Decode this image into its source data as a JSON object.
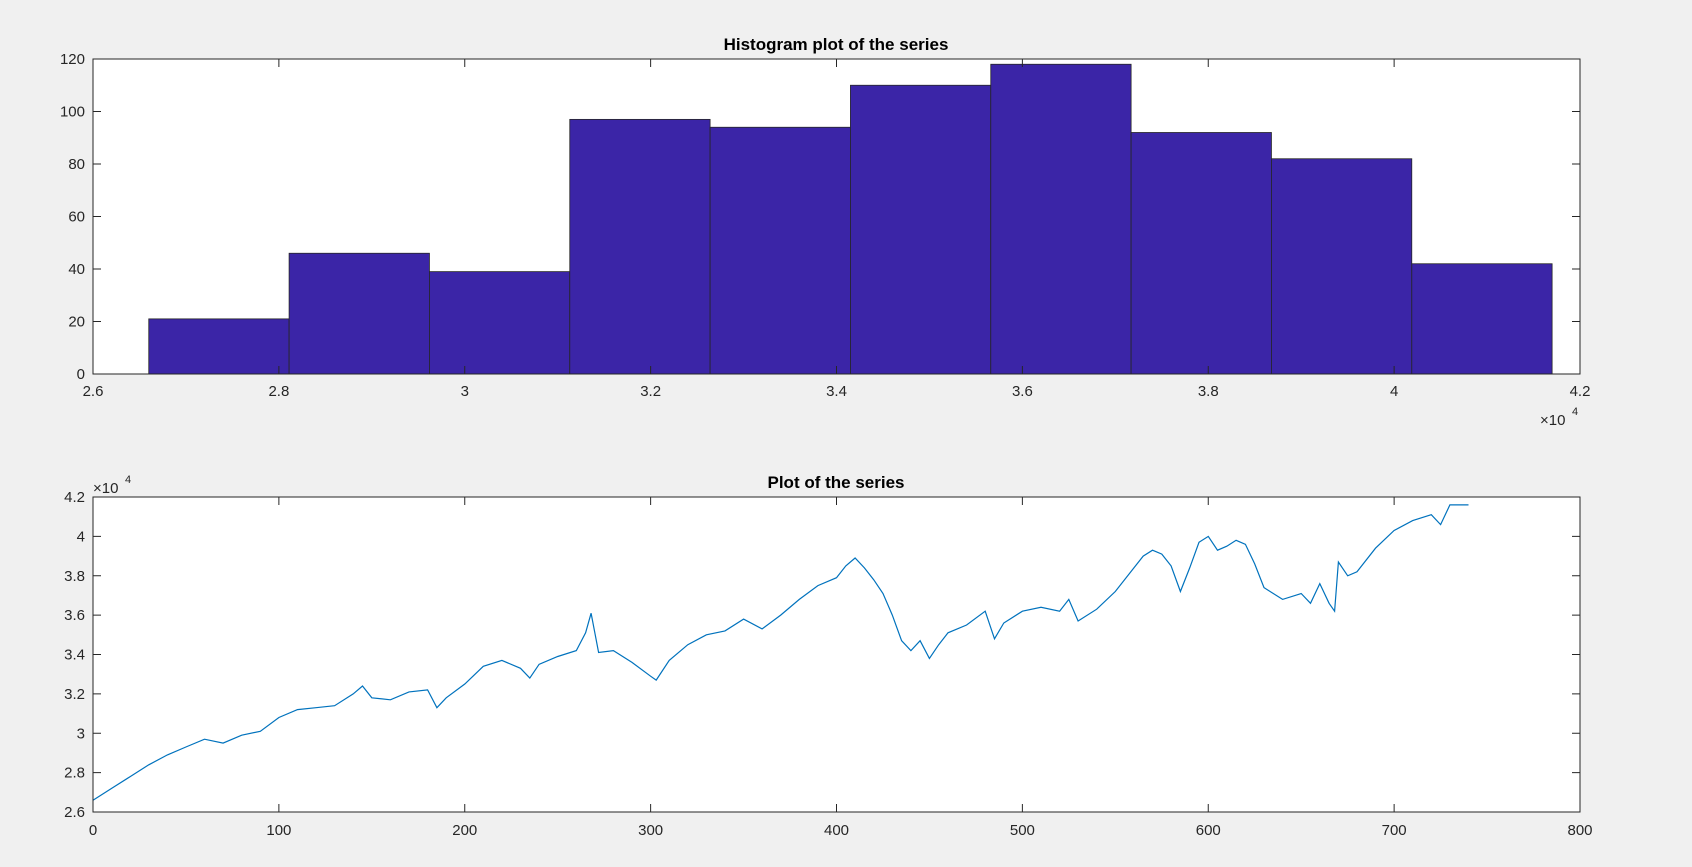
{
  "chart_data": [
    {
      "type": "bar",
      "title": "Histogram plot of the series",
      "xlabel": "",
      "ylabel": "",
      "x_exponent_label": "×10",
      "x_exponent_power": "4",
      "bin_edges": [
        2.66,
        2.811,
        2.962,
        3.113,
        3.264,
        3.415,
        3.566,
        3.717,
        3.868,
        4.019,
        4.17
      ],
      "values": [
        21,
        46,
        39,
        97,
        94,
        110,
        118,
        92,
        82,
        42
      ],
      "xlim": [
        2.6,
        4.2
      ],
      "ylim": [
        0,
        120
      ],
      "xticks": [
        "2.6",
        "2.8",
        "3",
        "3.2",
        "3.4",
        "3.6",
        "3.8",
        "4",
        "4.2"
      ],
      "yticks": [
        "0",
        "20",
        "40",
        "60",
        "80",
        "100",
        "120"
      ],
      "bar_color": "#3b25a7",
      "grid": false
    },
    {
      "type": "line",
      "title": "Plot of the series",
      "xlabel": "",
      "ylabel": "",
      "y_exponent_label": "×10",
      "y_exponent_power": "4",
      "xlim": [
        0,
        800
      ],
      "ylim": [
        2.6,
        4.2
      ],
      "xticks": [
        "0",
        "100",
        "200",
        "300",
        "400",
        "500",
        "600",
        "700",
        "800"
      ],
      "yticks": [
        "2.6",
        "2.8",
        "3",
        "3.2",
        "3.4",
        "3.6",
        "3.8",
        "4",
        "4.2"
      ],
      "line_color": "#0072bd",
      "grid": false,
      "x": [
        0,
        10,
        20,
        30,
        40,
        50,
        60,
        70,
        80,
        90,
        100,
        110,
        120,
        130,
        140,
        145,
        150,
        160,
        170,
        180,
        185,
        190,
        200,
        210,
        220,
        230,
        235,
        240,
        250,
        260,
        265,
        268,
        272,
        280,
        290,
        300,
        303,
        310,
        320,
        330,
        340,
        350,
        360,
        370,
        380,
        390,
        400,
        405,
        410,
        415,
        420,
        425,
        430,
        435,
        440,
        445,
        450,
        455,
        460,
        470,
        480,
        485,
        490,
        500,
        510,
        520,
        525,
        530,
        540,
        550,
        560,
        565,
        570,
        575,
        580,
        585,
        590,
        595,
        600,
        605,
        610,
        615,
        620,
        625,
        630,
        640,
        650,
        655,
        660,
        665,
        668,
        670,
        675,
        680,
        690,
        700,
        710,
        720,
        725,
        730,
        740
      ],
      "y": [
        2.66,
        2.72,
        2.78,
        2.84,
        2.89,
        2.93,
        2.97,
        2.95,
        2.99,
        3.01,
        3.08,
        3.12,
        3.13,
        3.14,
        3.2,
        3.24,
        3.18,
        3.17,
        3.21,
        3.22,
        3.13,
        3.18,
        3.25,
        3.34,
        3.37,
        3.33,
        3.28,
        3.35,
        3.39,
        3.42,
        3.51,
        3.61,
        3.41,
        3.42,
        3.36,
        3.29,
        3.27,
        3.37,
        3.45,
        3.5,
        3.52,
        3.58,
        3.53,
        3.6,
        3.68,
        3.75,
        3.79,
        3.85,
        3.89,
        3.84,
        3.78,
        3.71,
        3.6,
        3.47,
        3.42,
        3.47,
        3.38,
        3.45,
        3.51,
        3.55,
        3.62,
        3.48,
        3.56,
        3.62,
        3.64,
        3.62,
        3.68,
        3.57,
        3.63,
        3.72,
        3.84,
        3.9,
        3.93,
        3.91,
        3.85,
        3.72,
        3.84,
        3.97,
        4.0,
        3.93,
        3.95,
        3.98,
        3.96,
        3.86,
        3.74,
        3.68,
        3.71,
        3.66,
        3.76,
        3.66,
        3.62,
        3.87,
        3.8,
        3.82,
        3.94,
        4.03,
        4.08,
        4.11,
        4.06,
        4.16,
        4.16
      ]
    }
  ]
}
